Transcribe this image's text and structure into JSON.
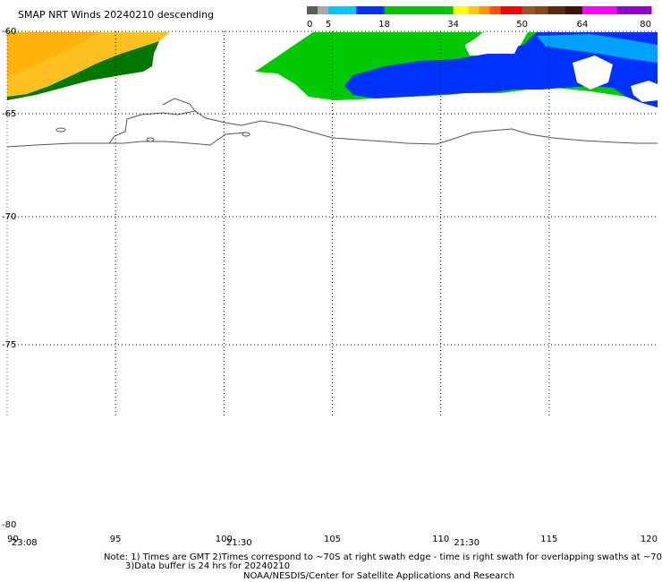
{
  "title": "SMAP NRT Winds  20240210 descending",
  "colorbar": {
    "ticks": [
      {
        "label": "0",
        "value": 0
      },
      {
        "label": "5",
        "value": 5
      },
      {
        "label": "18",
        "value": 18
      },
      {
        "label": "34",
        "value": 34
      },
      {
        "label": "50",
        "value": 50
      },
      {
        "label": "64",
        "value": 64
      },
      {
        "label": "80",
        "value": 80
      }
    ],
    "segments": [
      {
        "from": 0,
        "to": 2.5,
        "color": "#5a5a5a"
      },
      {
        "from": 2.5,
        "to": 5,
        "color": "#a9a9a9"
      },
      {
        "from": 5,
        "to": 11.5,
        "color": "#00c8ff"
      },
      {
        "from": 11.5,
        "to": 18,
        "color": "#0032ff"
      },
      {
        "from": 18,
        "to": 34,
        "color": "#00c800"
      },
      {
        "from": 34,
        "to": 37.5,
        "color": "#ffff00"
      },
      {
        "from": 37.5,
        "to": 40,
        "color": "#ffc800"
      },
      {
        "from": 40,
        "to": 42.5,
        "color": "#ff9600"
      },
      {
        "from": 42.5,
        "to": 45,
        "color": "#ff5000"
      },
      {
        "from": 45,
        "to": 50,
        "color": "#ff0000"
      },
      {
        "from": 50,
        "to": 53,
        "color": "#a0522d"
      },
      {
        "from": 53,
        "to": 56,
        "color": "#8b4513"
      },
      {
        "from": 56,
        "to": 60,
        "color": "#5a2a0a"
      },
      {
        "from": 60,
        "to": 64,
        "color": "#3c1400"
      },
      {
        "from": 64,
        "to": 72,
        "color": "#ff00ff"
      },
      {
        "from": 72,
        "to": 80,
        "color": "#9400d3"
      }
    ]
  },
  "map": {
    "lat_range": [
      -80,
      -60
    ],
    "lon_range": [
      90,
      120
    ],
    "lat_labels": [
      "-60",
      "-65",
      "-70",
      "-75",
      "-80"
    ],
    "lon_labels": [
      "90",
      "95",
      "100",
      "105",
      "110",
      "115",
      "120"
    ],
    "time_labels": [
      {
        "text": "23:08",
        "lon": 90.2
      },
      {
        "text": "21:30",
        "lon": 100.7
      },
      {
        "text": "21:30",
        "lon": 111.2
      }
    ],
    "colors": {
      "yellow_orange": "#ffc020",
      "dark_green": "#007800",
      "green": "#00c800",
      "blue": "#0032ff",
      "light_blue": "#00a0ff",
      "grid": "#000000",
      "coast": "#555555"
    }
  },
  "notes": {
    "line1": "Note: 1) Times are GMT 2)Times correspond to ~70S at right swath edge - time is right swath for overlapping swaths at ~70S",
    "line2": "3)Data buffer is 24 hrs for 20240210",
    "line3": "NOAA/NESDIS/Center for Satellite Applications and Research"
  }
}
